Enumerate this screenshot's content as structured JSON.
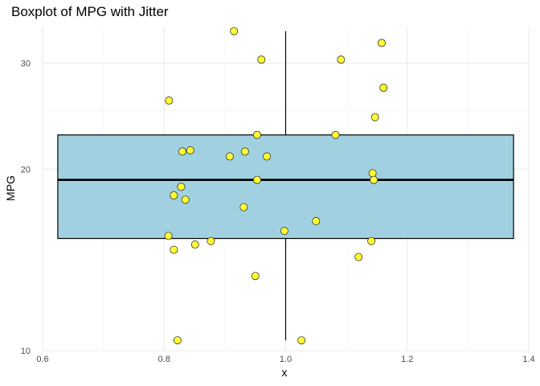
{
  "chart_data": {
    "type": "boxplot",
    "title": "Boxplot of MPG with Jitter",
    "xlabel": "x",
    "ylabel": "MPG",
    "x_scale": "linear",
    "y_scale": "log10",
    "xlim": [
      0.6,
      1.4
    ],
    "ylim": [
      10,
      34.5
    ],
    "x_ticks": [
      0.6,
      0.8,
      1.0,
      1.2,
      1.4
    ],
    "x_tick_labels": [
      "0.6",
      "0.8",
      "1.0",
      "1.2",
      "1.4"
    ],
    "y_ticks": [
      10,
      20,
      30
    ],
    "y_tick_labels": [
      "10",
      "20",
      "30"
    ],
    "grid": true,
    "box": {
      "x": 1.0,
      "x_min": 0.625,
      "x_max": 1.375,
      "whisker_low": 10.4,
      "q1": 15.35,
      "median": 19.2,
      "q3": 22.8,
      "whisker_high": 33.9,
      "fill": "#a1d1e1",
      "stroke": "#000000"
    },
    "points": {
      "fill": "#ffff33",
      "stroke": "#333333",
      "values": [
        {
          "x": 0.915,
          "y": 33.9
        },
        {
          "x": 1.158,
          "y": 32.4
        },
        {
          "x": 0.96,
          "y": 30.4
        },
        {
          "x": 1.091,
          "y": 30.4
        },
        {
          "x": 1.161,
          "y": 27.3
        },
        {
          "x": 0.808,
          "y": 26.0
        },
        {
          "x": 1.147,
          "y": 24.4
        },
        {
          "x": 0.953,
          "y": 22.8
        },
        {
          "x": 1.082,
          "y": 22.8
        },
        {
          "x": 0.843,
          "y": 21.5
        },
        {
          "x": 0.83,
          "y": 21.4
        },
        {
          "x": 0.933,
          "y": 21.4
        },
        {
          "x": 0.908,
          "y": 21.0
        },
        {
          "x": 0.969,
          "y": 21.0
        },
        {
          "x": 1.143,
          "y": 19.7
        },
        {
          "x": 0.953,
          "y": 19.2
        },
        {
          "x": 1.145,
          "y": 19.2
        },
        {
          "x": 0.828,
          "y": 18.7
        },
        {
          "x": 0.816,
          "y": 18.1
        },
        {
          "x": 0.835,
          "y": 17.8
        },
        {
          "x": 0.931,
          "y": 17.3
        },
        {
          "x": 1.05,
          "y": 16.4
        },
        {
          "x": 0.998,
          "y": 15.8
        },
        {
          "x": 0.807,
          "y": 15.5
        },
        {
          "x": 1.141,
          "y": 15.2
        },
        {
          "x": 0.877,
          "y": 15.2
        },
        {
          "x": 0.851,
          "y": 15.0
        },
        {
          "x": 0.816,
          "y": 14.7
        },
        {
          "x": 1.12,
          "y": 14.3
        },
        {
          "x": 0.95,
          "y": 13.3
        },
        {
          "x": 0.822,
          "y": 10.4
        },
        {
          "x": 1.026,
          "y": 10.4
        }
      ]
    }
  }
}
